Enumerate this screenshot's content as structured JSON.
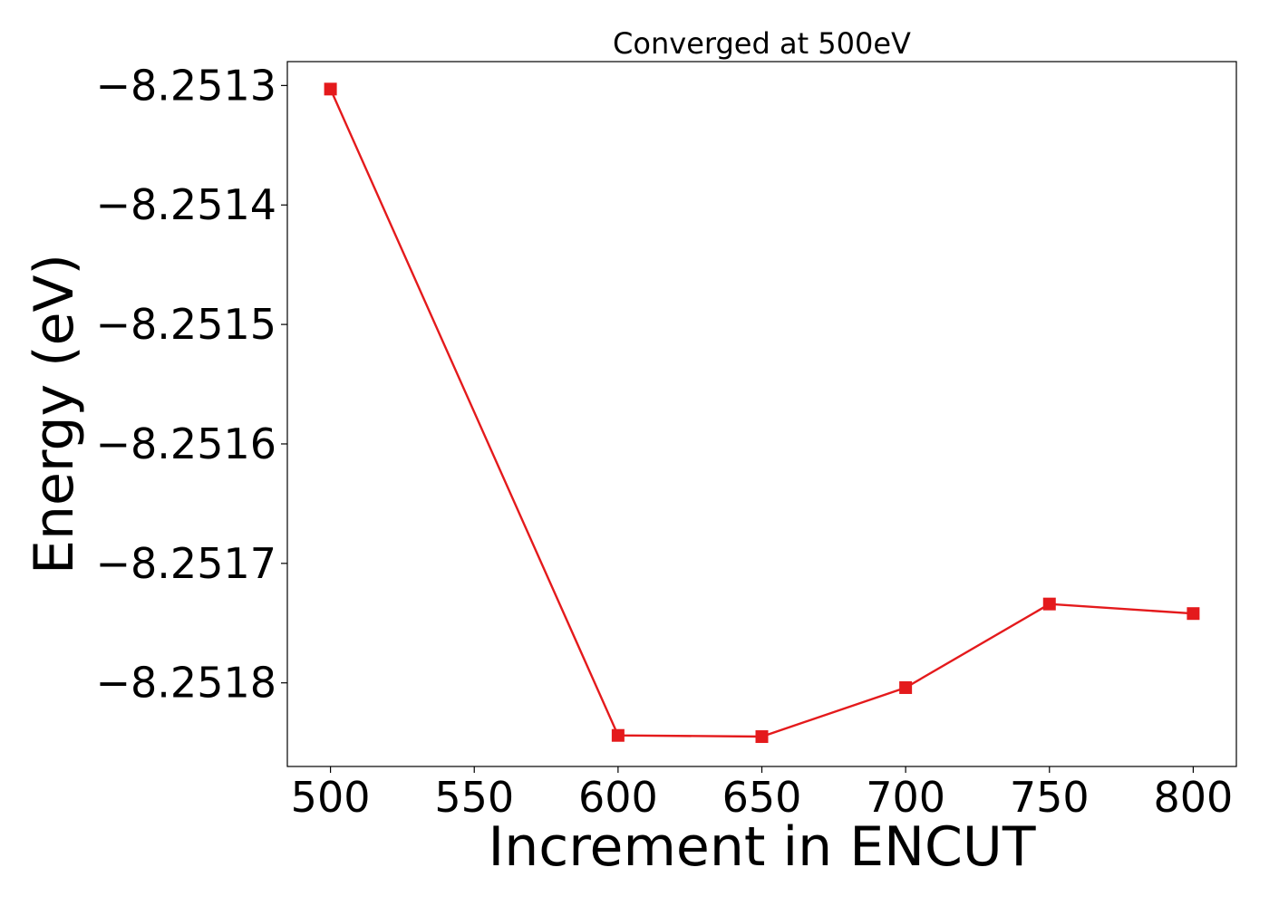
{
  "chart_data": {
    "type": "line",
    "title": "Converged at 500eV",
    "xlabel": "Increment in ENCUT",
    "ylabel": "Energy (eV)",
    "xlim": [
      485,
      815
    ],
    "ylim": [
      -8.25187,
      -8.25128
    ],
    "xticks": [
      500,
      550,
      600,
      650,
      700,
      750,
      800
    ],
    "xtick_labels": [
      "500",
      "550",
      "600",
      "650",
      "700",
      "750",
      "800"
    ],
    "yticks": [
      -8.2513,
      -8.2514,
      -8.2515,
      -8.2516,
      -8.2517,
      -8.2518
    ],
    "ytick_labels": [
      "−8.2513",
      "−8.2514",
      "−8.2515",
      "−8.2516",
      "−8.2517",
      "−8.2518"
    ],
    "grid": false,
    "series": [
      {
        "color": "#e41a1c",
        "marker": "square",
        "x": [
          500,
          600,
          650,
          700,
          750,
          800
        ],
        "y": [
          -8.251303,
          -8.251844,
          -8.251845,
          -8.251804,
          -8.251734,
          -8.251742
        ]
      }
    ]
  }
}
